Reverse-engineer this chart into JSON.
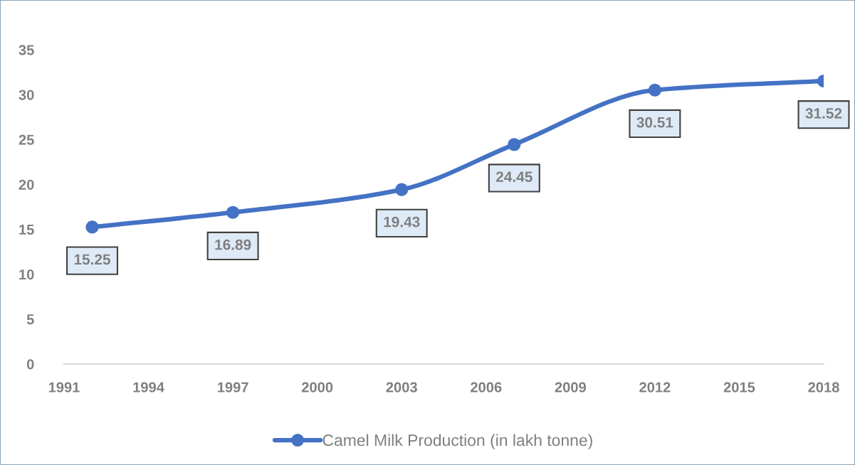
{
  "chart_data": {
    "type": "line",
    "x": [
      1992,
      1997,
      2003,
      2007,
      2012,
      2018
    ],
    "series": [
      {
        "name": "Camel Milk Production (in lakh tonne)",
        "color": "#4472c4",
        "values": [
          15.25,
          16.89,
          19.43,
          24.45,
          30.51,
          31.52
        ]
      }
    ],
    "xlim": [
      1991,
      2018
    ],
    "xticks": [
      1991,
      1994,
      1997,
      2000,
      2003,
      2006,
      2009,
      2012,
      2015,
      2018
    ],
    "ylim": [
      0,
      35
    ],
    "yticks": [
      0,
      5,
      10,
      15,
      20,
      25,
      30,
      35
    ],
    "data_labels": true,
    "grid": false,
    "legend": "bottom",
    "marker": "circle",
    "line_style": "solid"
  }
}
